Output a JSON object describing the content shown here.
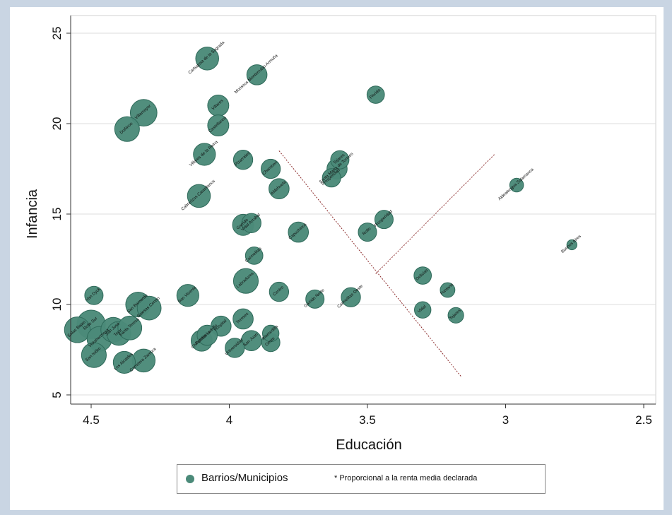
{
  "chart_data": {
    "type": "scatter",
    "xlabel": "Educación",
    "ylabel": "Infancia",
    "x_reversed": true,
    "xlim": [
      4.6,
      2.45
    ],
    "ylim": [
      4.5,
      25.8
    ],
    "xticks": [
      "4.5",
      "4",
      "3.5",
      "3",
      "2.5"
    ],
    "yticks": [
      "5",
      "10",
      "15",
      "20",
      "25"
    ],
    "grid": "horizontal",
    "colors": {
      "marker": "#4b8a79",
      "marker_edge": "#2f6a5a",
      "guide_line": "#8b2a2a",
      "plot_bg": "#ffffff",
      "outer_bg": "#c9d5e3"
    },
    "points": [
      {
        "x": 4.08,
        "y": 23.6,
        "r": 1.25,
        "label": "Carbajosa de la Sagrada"
      },
      {
        "x": 3.9,
        "y": 22.7,
        "r": 1.1,
        "label": "Moriscos Monterrubio Armuña"
      },
      {
        "x": 3.47,
        "y": 21.6,
        "r": 0.95,
        "label": "Florida"
      },
      {
        "x": 4.31,
        "y": 20.6,
        "r": 1.45,
        "label": "Villamayor"
      },
      {
        "x": 4.37,
        "y": 19.7,
        "r": 1.35,
        "label": "Doñinos"
      },
      {
        "x": 4.04,
        "y": 21.0,
        "r": 1.15,
        "label": "Villares"
      },
      {
        "x": 4.04,
        "y": 19.9,
        "r": 1.15,
        "label": "Castellanos"
      },
      {
        "x": 4.09,
        "y": 18.3,
        "r": 1.2,
        "label": "Villares de la Reina"
      },
      {
        "x": 3.95,
        "y": 18.0,
        "r": 1.05,
        "label": "Pizarrales"
      },
      {
        "x": 3.85,
        "y": 17.5,
        "r": 1.05,
        "label": "Chamberí"
      },
      {
        "x": 3.6,
        "y": 18.0,
        "r": 1.0,
        "label": "Tejares"
      },
      {
        "x": 3.61,
        "y": 17.5,
        "r": 1.1,
        "label": "Santa Marta de Tormes"
      },
      {
        "x": 3.63,
        "y": 17.0,
        "r": 1.0,
        "label": "Prosperidad"
      },
      {
        "x": 3.82,
        "y": 16.4,
        "r": 1.1,
        "label": "Aldehuela"
      },
      {
        "x": 4.11,
        "y": 16.0,
        "r": 1.25,
        "label": "Cabrerizos Castellanos"
      },
      {
        "x": 2.96,
        "y": 16.6,
        "r": 0.75,
        "label": "Aldealengua Salamanca"
      },
      {
        "x": 3.95,
        "y": 14.4,
        "r": 1.15,
        "label": "Garrido"
      },
      {
        "x": 3.92,
        "y": 14.5,
        "r": 1.05,
        "label": "Vidal Arrabal"
      },
      {
        "x": 3.75,
        "y": 14.0,
        "r": 1.1,
        "label": "Capuchinos"
      },
      {
        "x": 3.44,
        "y": 14.7,
        "r": 1.0,
        "label": "Prosperidad"
      },
      {
        "x": 3.5,
        "y": 14.0,
        "r": 1.0,
        "label": "Rollo"
      },
      {
        "x": 2.76,
        "y": 13.3,
        "r": 0.55,
        "label": "Buenos Aires"
      },
      {
        "x": 3.91,
        "y": 12.7,
        "r": 0.95,
        "label": "Carmelitas"
      },
      {
        "x": 3.3,
        "y": 11.6,
        "r": 0.95,
        "label": "Delicias"
      },
      {
        "x": 3.94,
        "y": 11.3,
        "r": 1.35,
        "label": "Labradores"
      },
      {
        "x": 3.82,
        "y": 10.7,
        "r": 1.05,
        "label": "Centro"
      },
      {
        "x": 3.21,
        "y": 10.8,
        "r": 0.8,
        "label": "Fontana"
      },
      {
        "x": 3.69,
        "y": 10.3,
        "r": 1.0,
        "label": "Garrido Norte"
      },
      {
        "x": 3.56,
        "y": 10.4,
        "r": 1.05,
        "label": "Carmelitas Oeste"
      },
      {
        "x": 4.15,
        "y": 10.5,
        "r": 1.2,
        "label": "San Vicente"
      },
      {
        "x": 4.49,
        "y": 10.5,
        "r": 1.0,
        "label": "Van Dyck"
      },
      {
        "x": 3.3,
        "y": 9.7,
        "r": 0.9,
        "label": "Vidal"
      },
      {
        "x": 3.18,
        "y": 9.4,
        "r": 0.85,
        "label": "Tejares"
      },
      {
        "x": 4.33,
        "y": 10.0,
        "r": 1.35,
        "label": "San Bernardo"
      },
      {
        "x": 4.29,
        "y": 9.8,
        "r": 1.3,
        "label": "Salesas Centro"
      },
      {
        "x": 3.95,
        "y": 9.2,
        "r": 1.1,
        "label": "Toreses"
      },
      {
        "x": 4.03,
        "y": 8.8,
        "r": 1.1,
        "label": "Hospital"
      },
      {
        "x": 4.1,
        "y": 8.0,
        "r": 1.15,
        "label": "Chinchibarra"
      },
      {
        "x": 4.08,
        "y": 8.3,
        "r": 1.1,
        "label": "Puente Ladrillo"
      },
      {
        "x": 3.92,
        "y": 8.0,
        "r": 1.1,
        "label": "San Juan"
      },
      {
        "x": 3.85,
        "y": 8.4,
        "r": 0.9,
        "label": "Alamedilla"
      },
      {
        "x": 3.85,
        "y": 7.9,
        "r": 1.0,
        "label": "Oeste"
      },
      {
        "x": 3.98,
        "y": 7.6,
        "r": 1.05,
        "label": "Universidad"
      },
      {
        "x": 4.55,
        "y": 8.6,
        "r": 1.4,
        "label": "Salas Bajas"
      },
      {
        "x": 4.5,
        "y": 8.9,
        "r": 1.55,
        "label": "Rollo Sur"
      },
      {
        "x": 4.47,
        "y": 8.1,
        "r": 1.35,
        "label": "Vistahermosa"
      },
      {
        "x": 4.42,
        "y": 8.6,
        "r": 1.35,
        "label": "San José"
      },
      {
        "x": 4.4,
        "y": 8.4,
        "r": 1.3,
        "label": "Tejar"
      },
      {
        "x": 4.36,
        "y": 8.7,
        "r": 1.3,
        "label": "Santa Teresa"
      },
      {
        "x": 4.49,
        "y": 7.2,
        "r": 1.35,
        "label": "San Isidro"
      },
      {
        "x": 4.38,
        "y": 6.8,
        "r": 1.2,
        "label": "Los Alcaldes"
      },
      {
        "x": 4.31,
        "y": 6.9,
        "r": 1.25,
        "label": "Carretera Zamora"
      }
    ],
    "guide_lines": [
      {
        "x1": 3.82,
        "y1": 18.5,
        "x2": 3.16,
        "y2": 6.0
      },
      {
        "x1": 3.47,
        "y1": 11.7,
        "x2": 3.04,
        "y2": 18.3
      }
    ],
    "legend": {
      "items": [
        "Barrios/Municipios"
      ],
      "note": "* Proporcional a la renta media declarada",
      "position": "bottom"
    }
  }
}
